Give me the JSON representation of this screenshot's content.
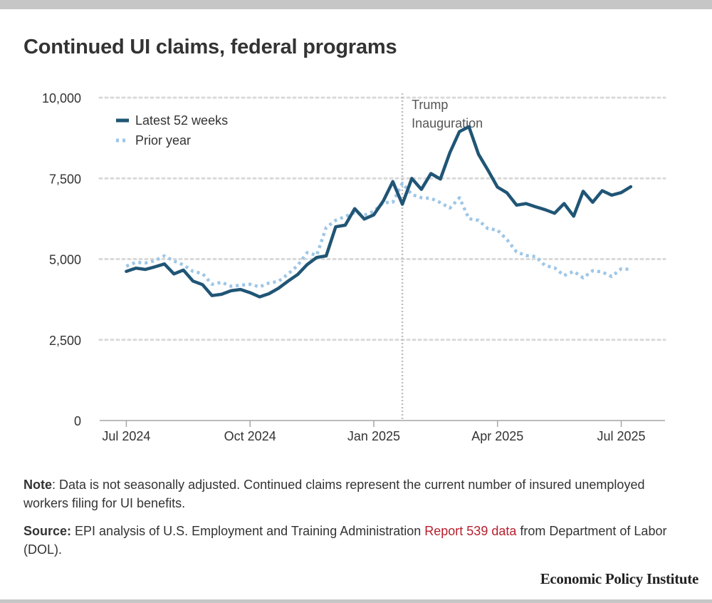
{
  "title": "Continued UI claims, federal programs",
  "chart_data": {
    "type": "line",
    "title": "Continued UI claims, federal programs",
    "xlabel": "",
    "ylabel": "",
    "ylim": [
      0,
      10000
    ],
    "yticks": [
      0,
      2500,
      5000,
      7500,
      10000
    ],
    "ytick_labels": [
      "0",
      "2,500",
      "5,000",
      "7,500",
      "10,000"
    ],
    "xticks": [
      0,
      13,
      26,
      39,
      52
    ],
    "xtick_labels": [
      "Jul 2024",
      "Oct 2024",
      "Jan 2025",
      "Apr 2025",
      "Jul 2025"
    ],
    "xlim": [
      -2.8,
      56.6
    ],
    "grid": true,
    "legend_position": "top-left",
    "annotation": {
      "x": 29,
      "label_line1": "Trump",
      "label_line2": "Inauguration"
    },
    "series": [
      {
        "name": "Latest 52 weeks",
        "color": "#205575",
        "style": "solid",
        "x": [
          0,
          1,
          2,
          3,
          4,
          5,
          6,
          7,
          8,
          9,
          10,
          11,
          12,
          13,
          14,
          15,
          16,
          17,
          18,
          19,
          20,
          21,
          22,
          23,
          24,
          25,
          26,
          27,
          28,
          29,
          30,
          31,
          32,
          33,
          34,
          35,
          36,
          37,
          38,
          39,
          40,
          41,
          42,
          43,
          44,
          45,
          46,
          47,
          48,
          49,
          50,
          51,
          52,
          53
        ],
        "values": [
          4620,
          4720,
          4680,
          4760,
          4850,
          4540,
          4660,
          4320,
          4210,
          3870,
          3910,
          4020,
          4060,
          3960,
          3830,
          3930,
          4100,
          4320,
          4520,
          4830,
          5050,
          5100,
          6000,
          6050,
          6560,
          6240,
          6370,
          6800,
          7400,
          6700,
          7500,
          7160,
          7650,
          7480,
          8300,
          8950,
          9100,
          8250,
          7750,
          7230,
          7050,
          6670,
          6720,
          6620,
          6530,
          6420,
          6720,
          6330,
          7100,
          6760,
          7120,
          6980,
          7060,
          7240
        ]
      },
      {
        "name": "Prior year",
        "color": "#9ec6e6",
        "style": "dotted",
        "x": [
          0,
          1,
          2,
          3,
          4,
          5,
          6,
          7,
          8,
          9,
          10,
          11,
          12,
          13,
          14,
          15,
          16,
          17,
          18,
          19,
          20,
          21,
          22,
          23,
          24,
          25,
          26,
          27,
          28,
          29,
          30,
          31,
          32,
          33,
          34,
          35,
          36,
          37,
          38,
          39,
          40,
          41,
          42,
          43,
          44,
          45,
          46,
          47,
          48,
          49,
          50,
          51,
          52,
          53
        ],
        "values": [
          4780,
          4900,
          4880,
          4950,
          5100,
          4940,
          4820,
          4620,
          4550,
          4220,
          4280,
          4160,
          4190,
          4220,
          4140,
          4260,
          4310,
          4540,
          4800,
          5200,
          5120,
          5980,
          6200,
          6320,
          6440,
          6360,
          6480,
          6750,
          6760,
          7350,
          7000,
          6900,
          6880,
          6750,
          6580,
          6900,
          6250,
          6200,
          5940,
          5900,
          5600,
          5220,
          5110,
          5080,
          4800,
          4730,
          4490,
          4620,
          4420,
          4640,
          4600,
          4460,
          4700,
          4680
        ]
      }
    ]
  },
  "note": {
    "label": "Note",
    "text": ": Data is not seasonally adjusted. Continued claims represent the current number of insured unemployed workers filing for UI benefits."
  },
  "source": {
    "label": "Source:",
    "text_before": " EPI analysis of U.S. Employment and Training Administration ",
    "link_text": "Report 539 data",
    "text_after": " from Department of Labor (DOL)."
  },
  "brand": "Economic Policy Institute",
  "colors": {
    "latest": "#205575",
    "prior": "#9ec6e6",
    "grid": "#d9d9d9",
    "link": "#b5202e"
  }
}
